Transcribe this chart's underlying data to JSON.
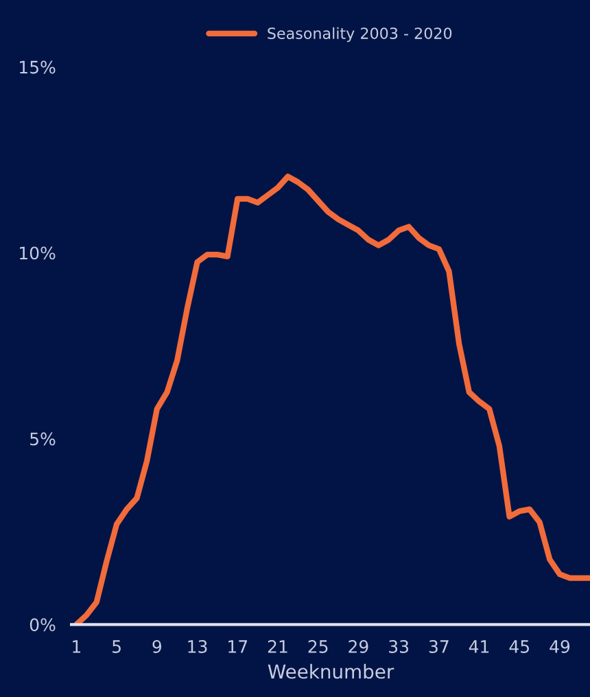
{
  "chart_data": {
    "type": "line",
    "xlabel": "Weeknumber",
    "legend": "top",
    "x": [
      1,
      2,
      3,
      4,
      5,
      6,
      7,
      8,
      9,
      10,
      11,
      12,
      13,
      14,
      15,
      16,
      17,
      18,
      19,
      20,
      21,
      22,
      23,
      24,
      25,
      26,
      27,
      28,
      29,
      30,
      31,
      32,
      33,
      34,
      35,
      36,
      37,
      38,
      39,
      40,
      41,
      42,
      43,
      44,
      45,
      46,
      47,
      48,
      49,
      50,
      51,
      52
    ],
    "series": [
      {
        "name": "Seasonality 2003 - 2020",
        "color": "#f26b3a",
        "values": [
          0,
          0.25,
          0.6,
          1.7,
          2.7,
          3.1,
          3.4,
          4.4,
          5.8,
          6.25,
          7.1,
          8.5,
          9.75,
          9.95,
          9.95,
          9.9,
          11.45,
          11.45,
          11.35,
          11.55,
          11.75,
          12.05,
          11.9,
          11.7,
          11.4,
          11.1,
          10.9,
          10.75,
          10.6,
          10.35,
          10.2,
          10.35,
          10.6,
          10.7,
          10.4,
          10.2,
          10.1,
          9.5,
          7.55,
          6.25,
          6.0,
          5.8,
          4.8,
          2.9,
          3.05,
          3.1,
          2.75,
          1.75,
          1.35,
          1.25,
          1.25,
          1.25
        ]
      }
    ],
    "xlim": [
      0.5,
      52
    ],
    "xticks": [
      1,
      5,
      9,
      13,
      17,
      21,
      25,
      29,
      33,
      37,
      41,
      45,
      49
    ],
    "ylim": [
      0,
      15
    ],
    "yticks": [
      {
        "value": 0,
        "label": "0%"
      },
      {
        "value": 5,
        "label": "5%"
      },
      {
        "value": 10,
        "label": "10%"
      },
      {
        "value": 15,
        "label": "15%"
      }
    ],
    "grid": false
  }
}
